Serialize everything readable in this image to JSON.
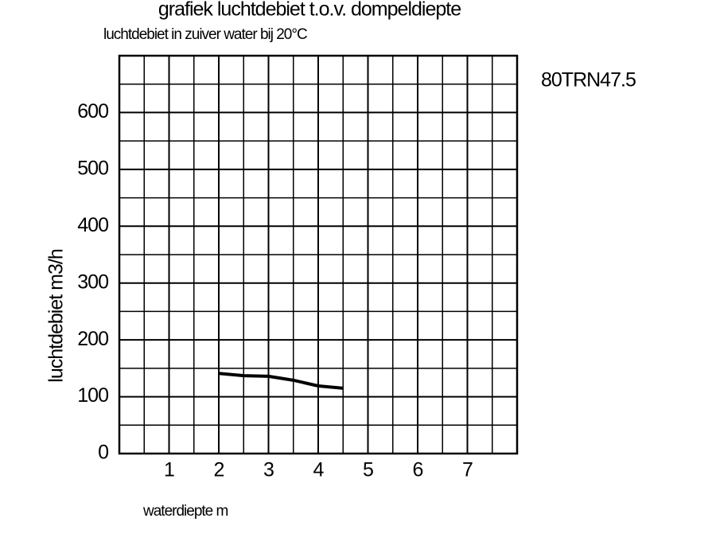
{
  "chart_data": {
    "type": "line",
    "title": "grafiek luchtdebiet t.o.v. dompeldiepte",
    "subtitle": "luchtdebiet in zuiver water bij 20°C",
    "annotation": "80TRN47.5",
    "x_label": "waterdiepte m",
    "y_label": "luchtdebiet m3/h",
    "x": [
      2,
      2.5,
      3,
      3.5,
      4,
      4.5
    ],
    "series": [
      {
        "color": "#000000",
        "values": [
          141,
          137,
          136,
          129,
          119,
          115
        ]
      }
    ],
    "xlim": [
      0,
      8
    ],
    "xticks": [
      1,
      2,
      3,
      4,
      5,
      6,
      7
    ],
    "ylim": [
      0,
      700
    ],
    "yticks": [
      0,
      100,
      200,
      300,
      400,
      500,
      600
    ],
    "grid": true,
    "minor_grid": true
  }
}
